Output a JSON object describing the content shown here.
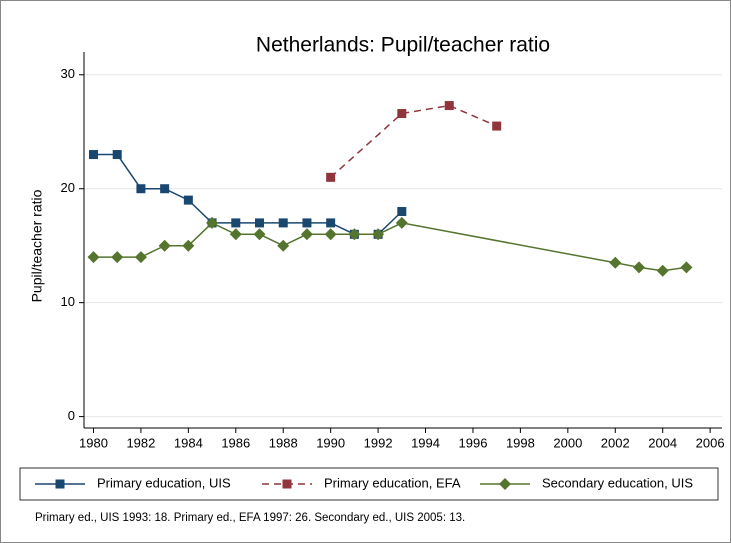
{
  "chart_data": {
    "type": "line",
    "title": "Netherlands: Pupil/teacher ratio",
    "y_label": "Pupil/teacher ratio",
    "note": "Primary ed., UIS 1993: 18. Primary ed., EFA 1997: 26. Secondary ed., UIS 2005: 13.",
    "xlim": [
      1979.6,
      2006.5
    ],
    "xticks": [
      1980,
      1982,
      1984,
      1986,
      1988,
      1990,
      1992,
      1994,
      1996,
      1998,
      2000,
      2002,
      2004,
      2006
    ],
    "ylim": [
      -1,
      32
    ],
    "yticks": [
      0,
      10,
      20,
      30
    ],
    "grid": true,
    "legend": "bottom",
    "series": [
      {
        "name": "Primary education, UIS",
        "color": "#1a476f",
        "marker": "square",
        "line_style": "solid",
        "x": [
          1980,
          1981,
          1982,
          1983,
          1984,
          1985,
          1986,
          1987,
          1988,
          1989,
          1990,
          1991,
          1992,
          1993
        ],
        "values": [
          23,
          23,
          20,
          20,
          19,
          17,
          17,
          17,
          17,
          17,
          17,
          16,
          16,
          18
        ]
      },
      {
        "name": "Primary education, EFA",
        "color": "#90353b",
        "marker": "square",
        "line_style": "dashed",
        "x": [
          1990,
          1993,
          1995,
          1997
        ],
        "values": [
          21,
          26.6,
          27.3,
          25.5
        ]
      },
      {
        "name": "Secondary education, UIS",
        "color": "#55752f",
        "marker": "diamond",
        "line_style": "solid",
        "x": [
          1980,
          1981,
          1982,
          1983,
          1984,
          1985,
          1986,
          1987,
          1988,
          1989,
          1990,
          1991,
          1992,
          1993,
          2002,
          2003,
          2004,
          2005
        ],
        "values": [
          14,
          14,
          14,
          15,
          15,
          17,
          16,
          16,
          15,
          16,
          16,
          16,
          16,
          17,
          13.5,
          13.1,
          12.8,
          13.1
        ]
      }
    ]
  }
}
